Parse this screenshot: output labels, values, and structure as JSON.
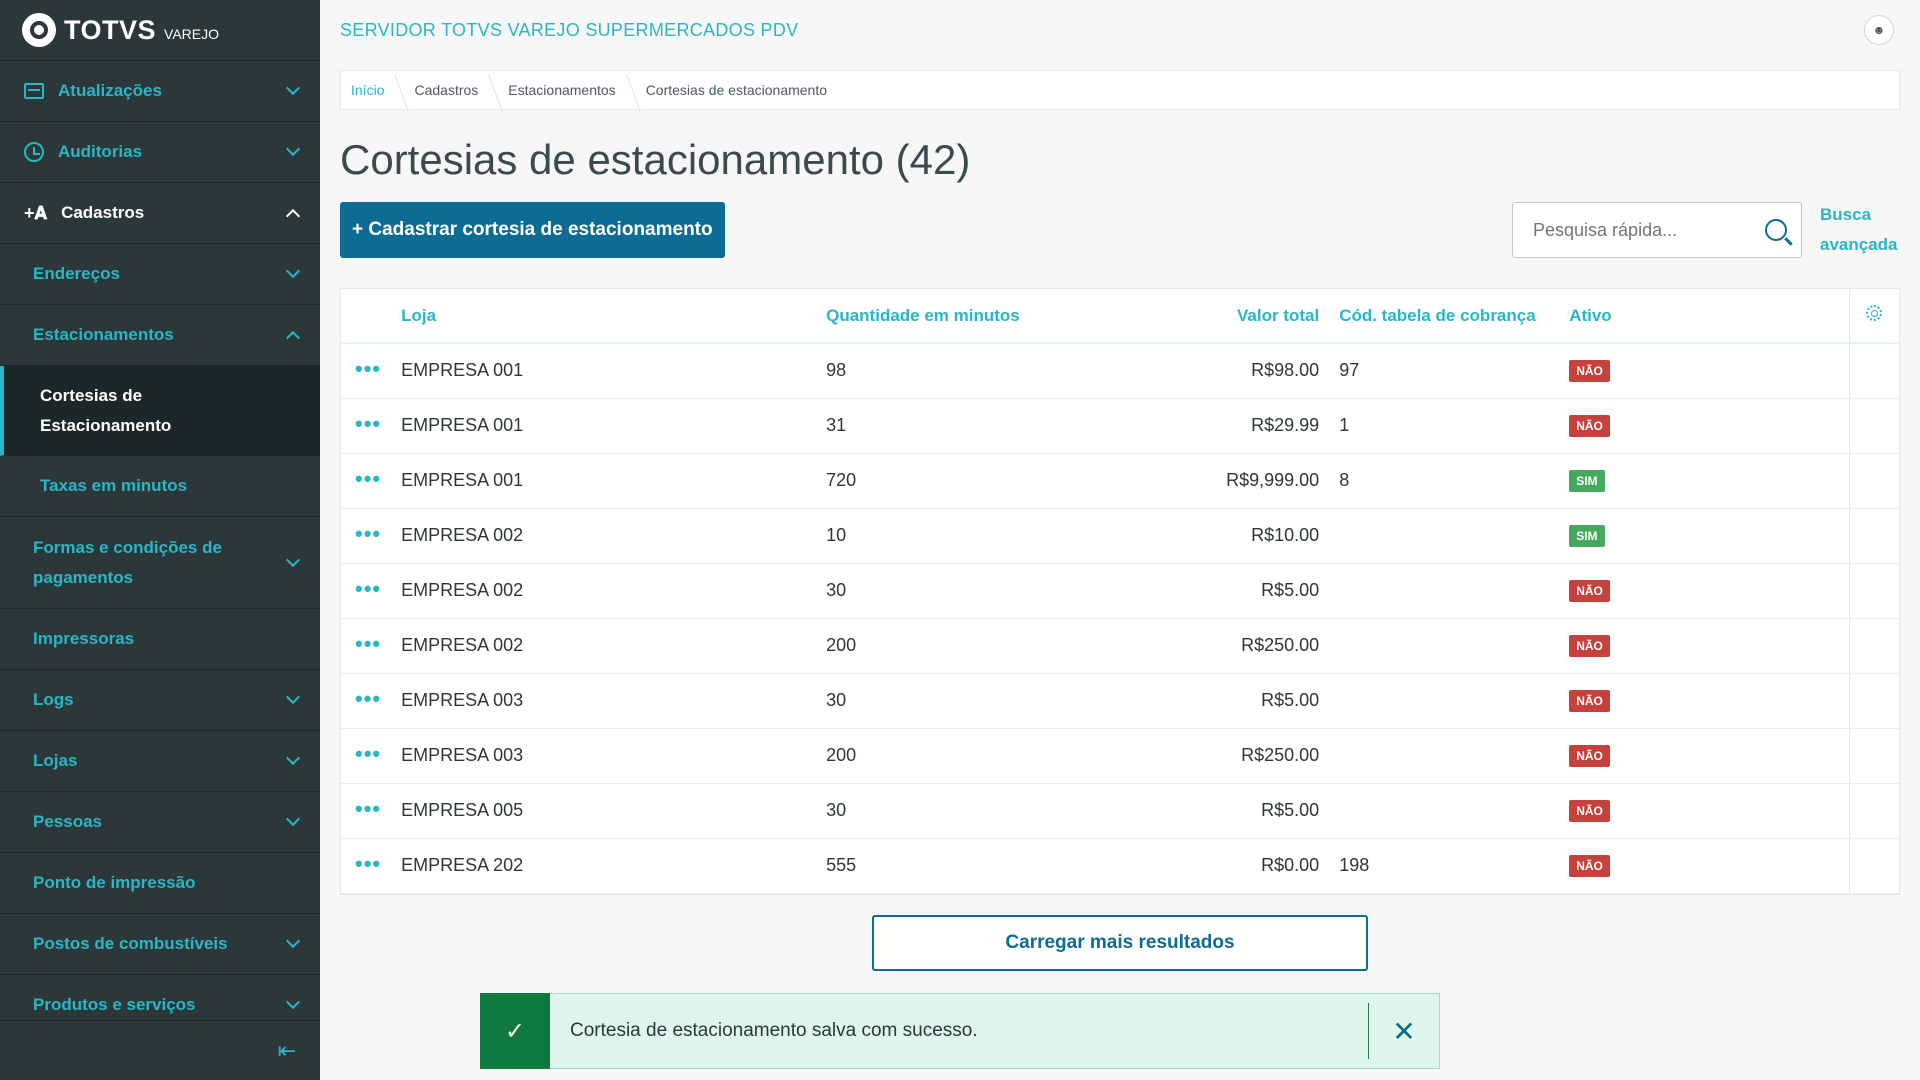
{
  "logo": {
    "brand": "TOTVS",
    "sub": "VAREJO"
  },
  "sidebar": {
    "items": [
      {
        "label": "Atualizações",
        "icon": "box-icon",
        "level": 1
      },
      {
        "label": "Auditorias",
        "icon": "history-icon",
        "level": 1
      },
      {
        "label": "Cadastros",
        "icon": "user-add-icon",
        "level": 1,
        "expanded": true
      },
      {
        "label": "Endereços",
        "level": 2
      },
      {
        "label": "Estacionamentos",
        "level": 2,
        "expanded": true
      },
      {
        "label": "Cortesias de Estacionamento",
        "level": 3,
        "selected": true
      },
      {
        "label": "Taxas em minutos",
        "level": 3
      },
      {
        "label": "Formas e condições de pagamentos",
        "level": 2
      },
      {
        "label": "Impressoras",
        "level": 2
      },
      {
        "label": "Logs",
        "level": 2
      },
      {
        "label": "Lojas",
        "level": 2
      },
      {
        "label": "Pessoas",
        "level": 2
      },
      {
        "label": "Ponto de impressão",
        "level": 2
      },
      {
        "label": "Postos de combustíveis",
        "level": 2
      },
      {
        "label": "Produtos e serviços",
        "level": 2
      }
    ],
    "collapse_icon": "collapse-menu-icon"
  },
  "header": {
    "server_title": "SERVIDOR TOTVS VAREJO SUPERMERCADOS PDV",
    "avatar_icon": "user-icon"
  },
  "breadcrumb": [
    "Início",
    "Cadastros",
    "Estacionamentos",
    "Cortesias de estacionamento"
  ],
  "page": {
    "title": "Cortesias de estacionamento (42)",
    "create_button": "+ Cadastrar cortesia de estacionamento",
    "search_placeholder": "Pesquisa rápida...",
    "advanced_search": "Busca avançada",
    "load_more": "Carregar mais resultados"
  },
  "table": {
    "columns": [
      "Loja",
      "Quantidade em minutos",
      "Valor total",
      "Cód. tabela de cobrança",
      "Ativo"
    ],
    "rows": [
      {
        "loja": "EMPRESA 001",
        "minutos": "98",
        "valor": "R$98.00",
        "codigo": "97",
        "ativo": "NÃO"
      },
      {
        "loja": "EMPRESA 001",
        "minutos": "31",
        "valor": "R$29.99",
        "codigo": "1",
        "ativo": "NÃO"
      },
      {
        "loja": "EMPRESA 001",
        "minutos": "720",
        "valor": "R$9,999.00",
        "codigo": "8",
        "ativo": "SIM"
      },
      {
        "loja": "EMPRESA 002",
        "minutos": "10",
        "valor": "R$10.00",
        "codigo": "",
        "ativo": "SIM"
      },
      {
        "loja": "EMPRESA 002",
        "minutos": "30",
        "valor": "R$5.00",
        "codigo": "",
        "ativo": "NÃO"
      },
      {
        "loja": "EMPRESA 002",
        "minutos": "200",
        "valor": "R$250.00",
        "codigo": "",
        "ativo": "NÃO"
      },
      {
        "loja": "EMPRESA 003",
        "minutos": "30",
        "valor": "R$5.00",
        "codigo": "",
        "ativo": "NÃO"
      },
      {
        "loja": "EMPRESA 003",
        "minutos": "200",
        "valor": "R$250.00",
        "codigo": "",
        "ativo": "NÃO"
      },
      {
        "loja": "EMPRESA 005",
        "minutos": "30",
        "valor": "R$5.00",
        "codigo": "",
        "ativo": "NÃO"
      },
      {
        "loja": "EMPRESA 202",
        "minutos": "555",
        "valor": "R$0.00",
        "codigo": "198",
        "ativo": "NÃO"
      }
    ]
  },
  "toast": {
    "message": "Cortesia de estacionamento salva com sucesso."
  },
  "colors": {
    "sidebar_bg": "#2c3739",
    "accent": "#29b6c5",
    "primary": "#0c6c94",
    "danger": "#c6403c",
    "success": "#44a95c"
  }
}
